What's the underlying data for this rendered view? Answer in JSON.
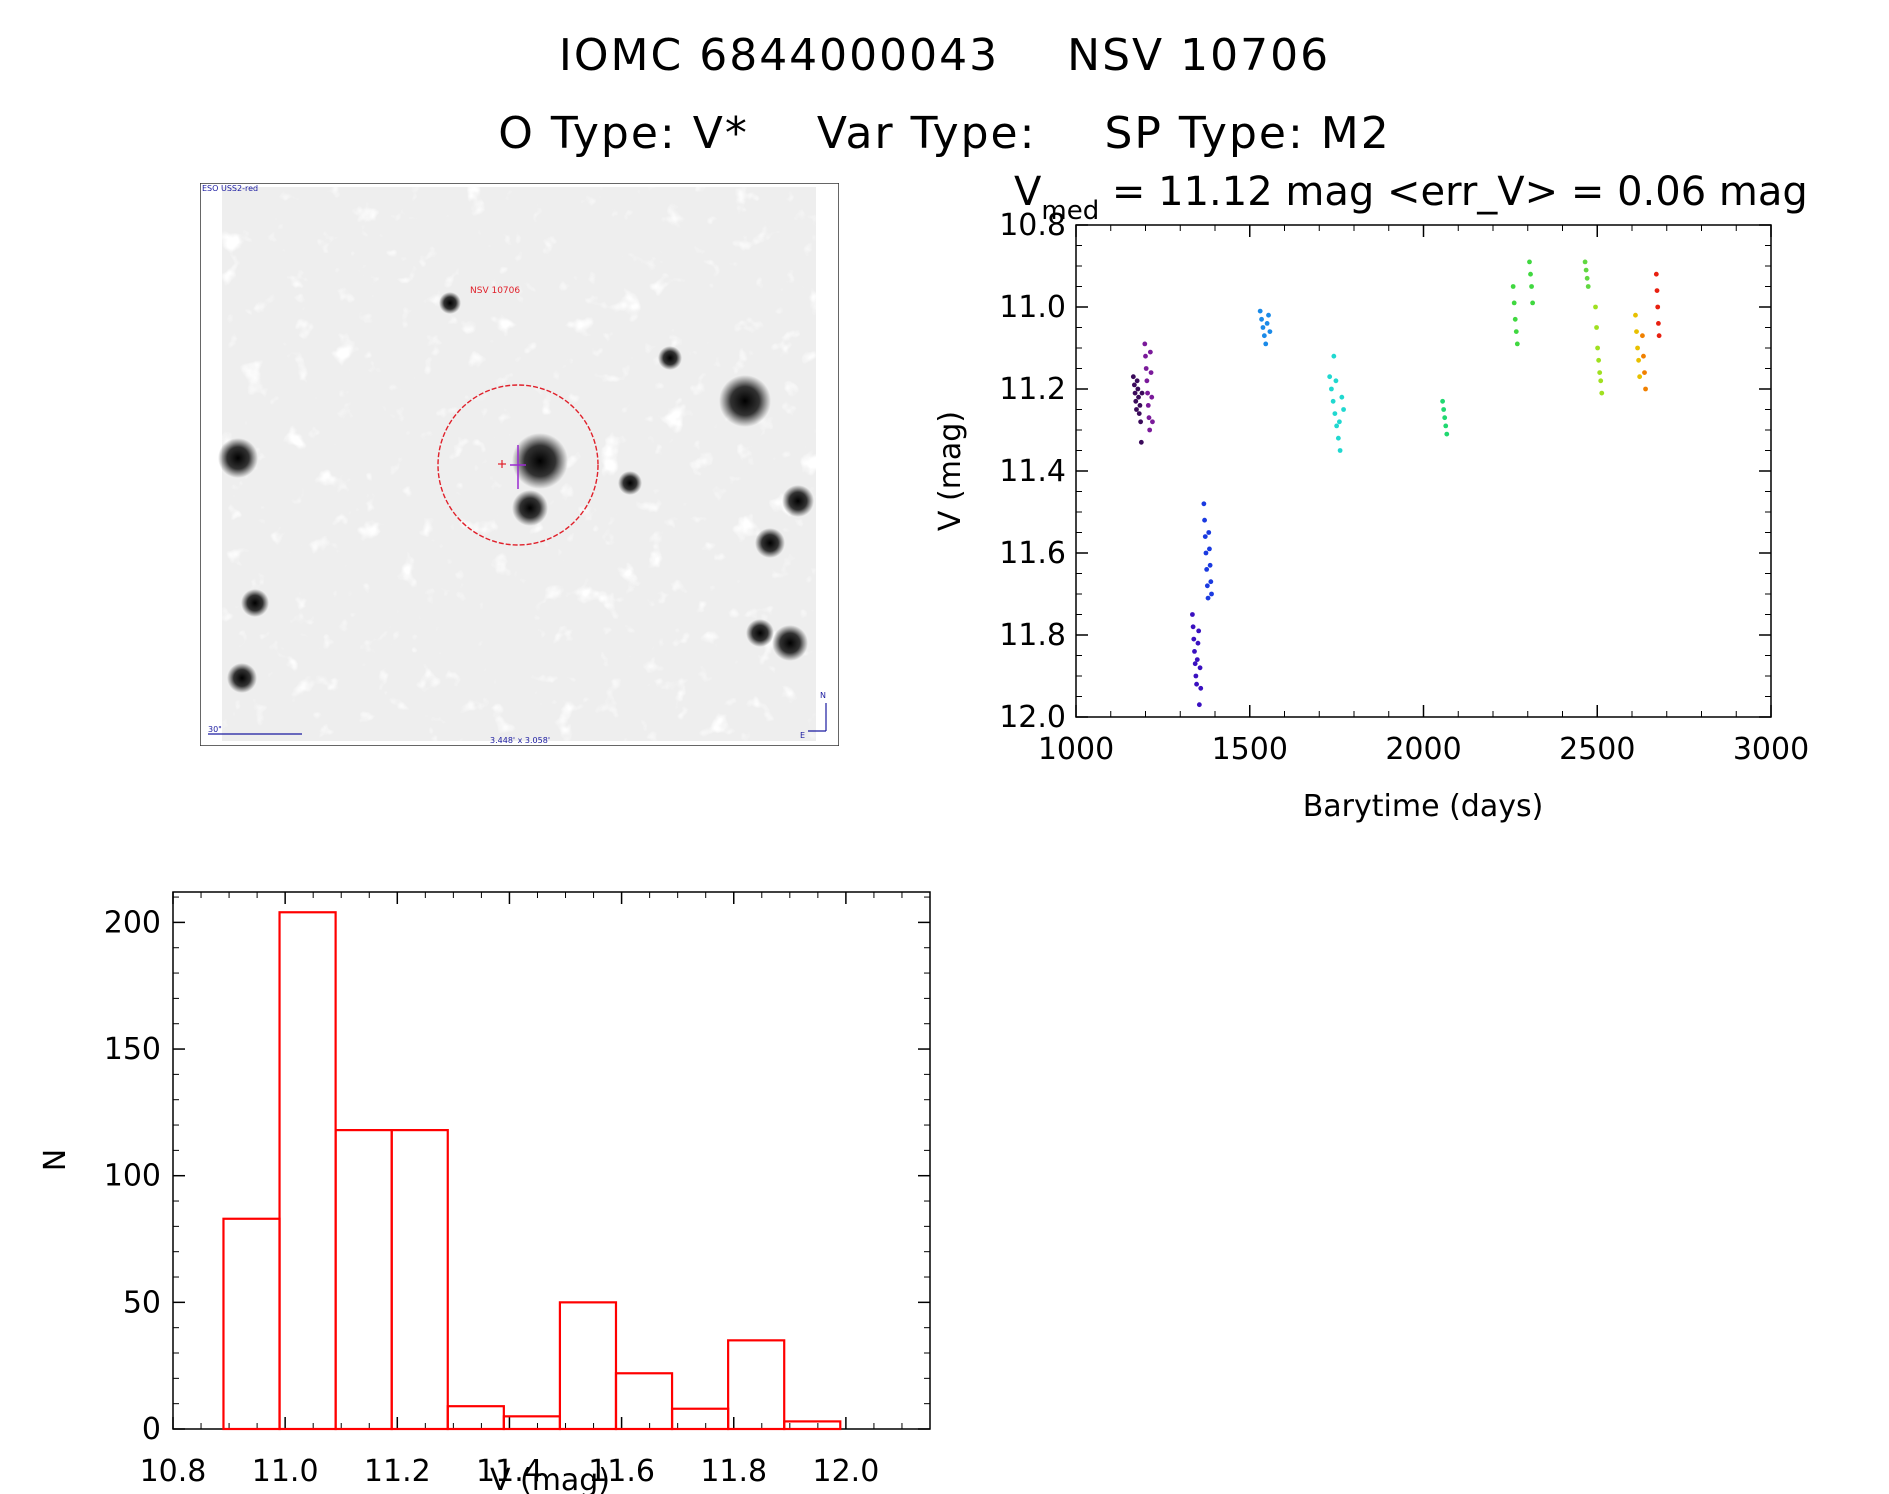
{
  "title": {
    "iomc_label": "IOMC 6844000043",
    "name": "NSV 10706",
    "o_type": "O Type: V*",
    "var_type": "Var Type:",
    "sp_type": "SP Type: M2"
  },
  "finder": {
    "survey_label": "ESO USS2-red",
    "object_label": "NSV 10706",
    "scale_label": "30\"",
    "fov_label": "3.448' x 3.058'",
    "north_label": "N",
    "east_label": "E"
  },
  "colors": {
    "circle": "#e0202a",
    "hist_bars": "#ff0000",
    "finder_label_blue": "#1a1aa0"
  },
  "chart_data": [
    {
      "type": "scatter",
      "title": "V_med = 11.12 mag <err_V> = 0.06 mag",
      "title_main": "V",
      "title_sub": "med",
      "title_rest": " = 11.12 mag <err_V> = 0.06 mag",
      "xlabel": "Barytime (days)",
      "ylabel": "V (mag)",
      "xlim": [
        1000,
        3000
      ],
      "ylim": [
        12.0,
        10.8
      ],
      "xticks": [
        "1000",
        "1500",
        "2000",
        "2500",
        "3000"
      ],
      "yticks": [
        "10.8",
        "11.0",
        "11.2",
        "11.4",
        "11.6",
        "11.8",
        "12.0"
      ],
      "series": [
        {
          "color": "#3a0a5a",
          "x": [
            1165,
            1168,
            1170,
            1172,
            1174,
            1176,
            1178,
            1180,
            1182,
            1184,
            1186,
            1188,
            1190
          ],
          "y": [
            11.17,
            11.19,
            11.21,
            11.23,
            11.25,
            11.18,
            11.2,
            11.22,
            11.26,
            11.24,
            11.28,
            11.33,
            11.21
          ]
        },
        {
          "color": "#7a1a9a",
          "x": [
            1198,
            1200,
            1202,
            1204,
            1206,
            1208,
            1210,
            1212,
            1214,
            1216,
            1218,
            1220
          ],
          "y": [
            11.09,
            11.12,
            11.15,
            11.18,
            11.21,
            11.24,
            11.27,
            11.3,
            11.11,
            11.16,
            11.22,
            11.28
          ]
        },
        {
          "color": "#3a10c0",
          "x": [
            1335,
            1337,
            1339,
            1341,
            1343,
            1345,
            1347,
            1349,
            1351,
            1353,
            1355,
            1357,
            1359
          ],
          "y": [
            11.75,
            11.78,
            11.81,
            11.84,
            11.87,
            11.9,
            11.92,
            11.86,
            11.82,
            11.79,
            11.97,
            11.88,
            11.93
          ]
        },
        {
          "color": "#1a3ae0",
          "x": [
            1368,
            1370,
            1372,
            1374,
            1376,
            1378,
            1380,
            1382,
            1384,
            1386,
            1388,
            1390
          ],
          "y": [
            11.48,
            11.52,
            11.56,
            11.6,
            11.64,
            11.68,
            11.71,
            11.55,
            11.59,
            11.63,
            11.67,
            11.7
          ]
        },
        {
          "color": "#1a8ae8",
          "x": [
            1530,
            1534,
            1538,
            1542,
            1546,
            1550,
            1554,
            1558
          ],
          "y": [
            11.01,
            11.03,
            11.05,
            11.07,
            11.09,
            11.04,
            11.02,
            11.06
          ]
        },
        {
          "color": "#20d8d0",
          "x": [
            1730,
            1735,
            1740,
            1745,
            1750,
            1755,
            1760,
            1765,
            1770,
            1742,
            1748,
            1758
          ],
          "y": [
            11.17,
            11.2,
            11.23,
            11.26,
            11.29,
            11.32,
            11.35,
            11.22,
            11.25,
            11.12,
            11.18,
            11.28
          ]
        },
        {
          "color": "#20d870",
          "x": [
            2055,
            2058,
            2061,
            2064,
            2067
          ],
          "y": [
            11.23,
            11.25,
            11.27,
            11.29,
            11.31
          ]
        },
        {
          "color": "#40d840",
          "x": [
            2258,
            2261,
            2264,
            2267,
            2270,
            2305,
            2308,
            2311,
            2314
          ],
          "y": [
            10.95,
            10.99,
            11.03,
            11.06,
            11.09,
            10.89,
            10.92,
            10.95,
            10.99
          ]
        },
        {
          "color": "#60d840",
          "x": [
            2465,
            2468,
            2471,
            2474
          ],
          "y": [
            10.89,
            10.91,
            10.93,
            10.95
          ]
        },
        {
          "color": "#a0e020",
          "x": [
            2495,
            2498,
            2501,
            2504,
            2507,
            2510,
            2513
          ],
          "y": [
            11.0,
            11.05,
            11.1,
            11.13,
            11.16,
            11.18,
            11.21
          ]
        },
        {
          "color": "#e8c000",
          "x": [
            2610,
            2613,
            2616,
            2619,
            2622
          ],
          "y": [
            11.02,
            11.06,
            11.1,
            11.13,
            11.17
          ]
        },
        {
          "color": "#f08000",
          "x": [
            2630,
            2633,
            2636,
            2639
          ],
          "y": [
            11.07,
            11.12,
            11.16,
            11.2
          ]
        },
        {
          "color": "#e82010",
          "x": [
            2670,
            2672,
            2674,
            2676,
            2678
          ],
          "y": [
            10.92,
            10.96,
            11.0,
            11.04,
            11.07
          ]
        }
      ]
    },
    {
      "type": "bar",
      "xlabel": "V (mag)",
      "ylabel": "N",
      "xlim": [
        10.8,
        12.15
      ],
      "ylim": [
        0,
        212
      ],
      "xticks": [
        "10.8",
        "11.0",
        "11.2",
        "11.4",
        "11.6",
        "11.8",
        "12.0"
      ],
      "yticks": [
        "0",
        "50",
        "100",
        "150",
        "200"
      ],
      "bin_edges": [
        10.89,
        10.99,
        11.09,
        11.19,
        11.29,
        11.39,
        11.49,
        11.59,
        11.69,
        11.79,
        11.89,
        11.99
      ],
      "values": [
        83,
        204,
        118,
        118,
        9,
        5,
        50,
        22,
        8,
        35,
        3
      ]
    }
  ]
}
